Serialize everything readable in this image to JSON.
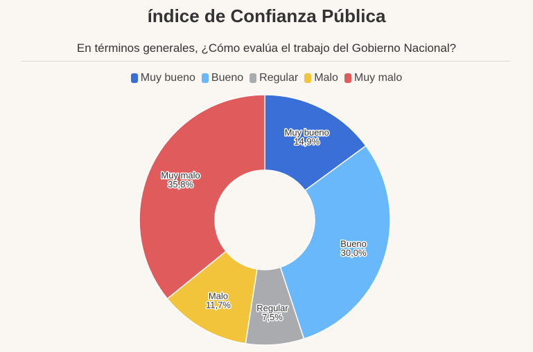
{
  "chart_data": {
    "type": "pie",
    "donut": true,
    "title": "índice de Confianza Pública",
    "subtitle": "En términos generales, ¿Cómo evalúa el trabajo del Gobierno Nacional?",
    "legend_position": "top",
    "categories": [
      "Muy bueno",
      "Bueno",
      "Regular",
      "Malo",
      "Muy malo"
    ],
    "values": [
      14.9,
      30.0,
      7.5,
      11.7,
      35.8
    ],
    "value_labels": [
      "14,9%",
      "30,0%",
      "7,5%",
      "11,7%",
      "35,8%"
    ],
    "colors": [
      "#3a6fd8",
      "#6ab8fc",
      "#a9abae",
      "#f2c43c",
      "#e05c5c"
    ]
  }
}
